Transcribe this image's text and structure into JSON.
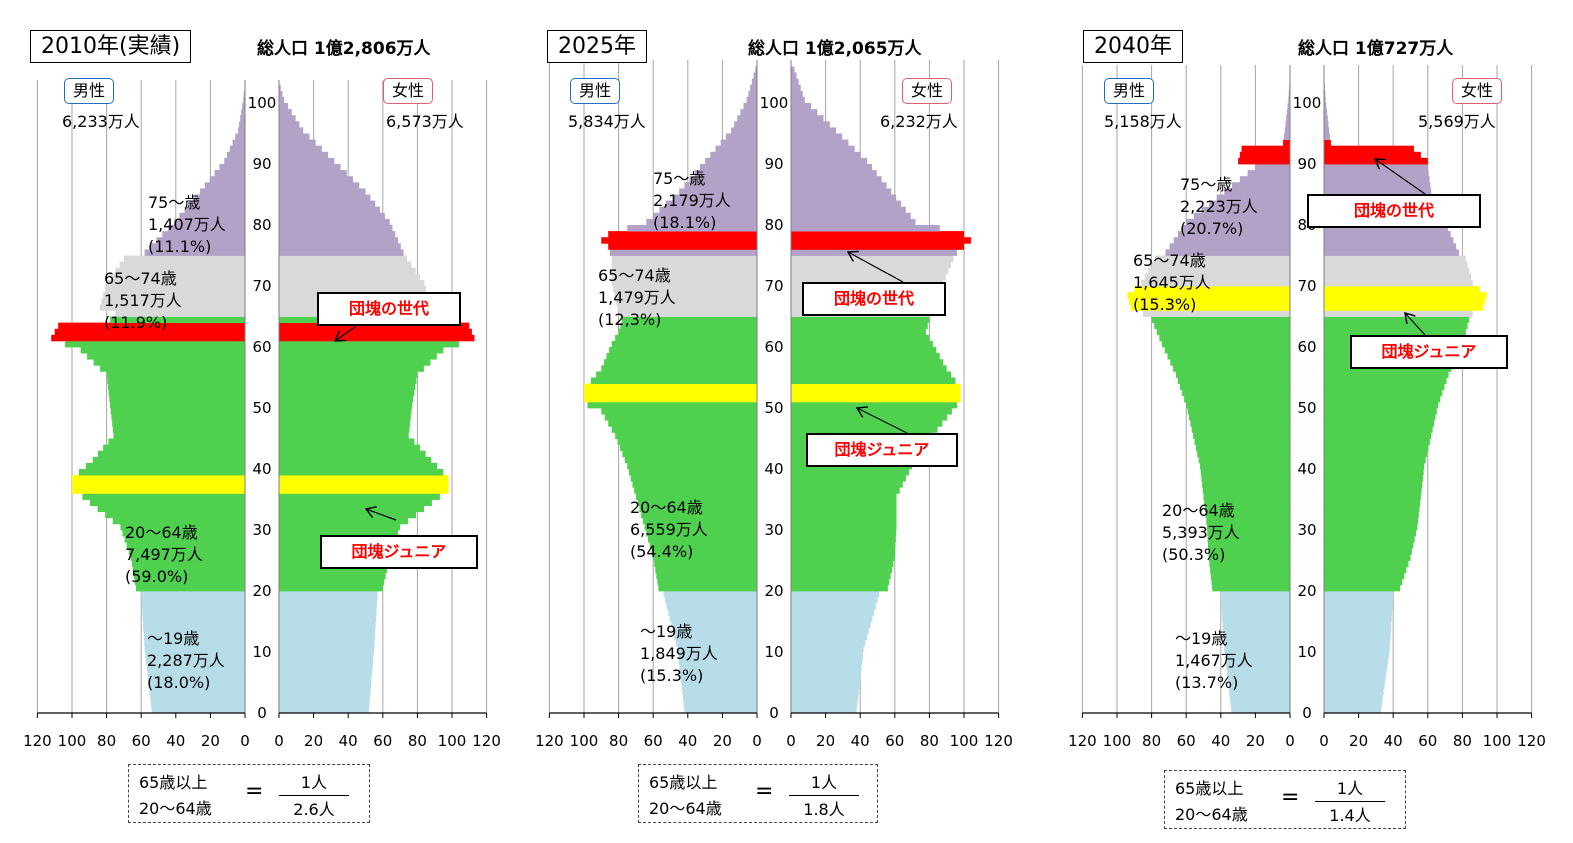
{
  "chart_data": [
    {
      "type": "bar",
      "year_label": "2010年(実績)",
      "total_label": "総人口 1億2,806万人",
      "male": {
        "label": "男性",
        "total": "6,233万人"
      },
      "female": {
        "label": "女性",
        "total": "6,573万人"
      },
      "x_ticks_left": [
        "120",
        "100",
        "80",
        "60",
        "40",
        "20",
        "0"
      ],
      "x_ticks_right": [
        "0",
        "20",
        "40",
        "60",
        "80",
        "100",
        "120"
      ],
      "y_ticks": [
        "0",
        "10",
        "20",
        "30",
        "40",
        "50",
        "60",
        "70",
        "80",
        "90",
        "100"
      ],
      "xlim": [
        0,
        120
      ],
      "ylim": [
        0,
        105
      ],
      "groups": [
        {
          "label": "75～歳\n1,407万人\n(11.1%)",
          "color": "#b3a2c7"
        },
        {
          "label": "65～74歳\n1,517万人\n(11.9%)",
          "color": "#d9d9d9"
        },
        {
          "label": "20～64歳\n7,497万人\n(59.0%)",
          "color": "#4fd04f"
        },
        {
          "label": "～19歳\n2,287万人\n(18.0%)",
          "color": "#b7dde8"
        }
      ],
      "callouts": [
        {
          "label": "団塊の世代",
          "color": "#ff0000"
        },
        {
          "label": "団塊ジュニア",
          "color": "#ffff00"
        }
      ],
      "ratio": {
        "top": "65歳以上",
        "bottom": "20～64歳",
        "eq": "=",
        "num": "1人",
        "den": "2.6人"
      },
      "anchors_male": [
        [
          0,
          54
        ],
        [
          10,
          58
        ],
        [
          19,
          60
        ],
        [
          20,
          63
        ],
        [
          25,
          66
        ],
        [
          30,
          72
        ],
        [
          35,
          94
        ],
        [
          36,
          100
        ],
        [
          38,
          100
        ],
        [
          39,
          96
        ],
        [
          41,
          88
        ],
        [
          45,
          76
        ],
        [
          50,
          78
        ],
        [
          55,
          80
        ],
        [
          59,
          95
        ],
        [
          60,
          104
        ],
        [
          61,
          112
        ],
        [
          63,
          108
        ],
        [
          64,
          78
        ],
        [
          65,
          75
        ],
        [
          66,
          84
        ],
        [
          70,
          80
        ],
        [
          74,
          70
        ],
        [
          75,
          58
        ],
        [
          80,
          41
        ],
        [
          85,
          26
        ],
        [
          90,
          12
        ],
        [
          95,
          4
        ],
        [
          100,
          1
        ],
        [
          103,
          0
        ]
      ],
      "anchors_female": [
        [
          0,
          52
        ],
        [
          10,
          55
        ],
        [
          19,
          57
        ],
        [
          20,
          60
        ],
        [
          25,
          64
        ],
        [
          30,
          70
        ],
        [
          35,
          93
        ],
        [
          36,
          98
        ],
        [
          38,
          98
        ],
        [
          39,
          95
        ],
        [
          41,
          88
        ],
        [
          45,
          75
        ],
        [
          50,
          77
        ],
        [
          55,
          80
        ],
        [
          59,
          95
        ],
        [
          60,
          104
        ],
        [
          61,
          113
        ],
        [
          63,
          110
        ],
        [
          64,
          80
        ],
        [
          65,
          78
        ],
        [
          66,
          88
        ],
        [
          70,
          84
        ],
        [
          74,
          74
        ],
        [
          75,
          72
        ],
        [
          80,
          64
        ],
        [
          85,
          50
        ],
        [
          90,
          32
        ],
        [
          95,
          14
        ],
        [
          100,
          3
        ],
        [
          103,
          0
        ]
      ],
      "bands": [
        [
          75,
          105,
          "#b3a2c7"
        ],
        [
          65,
          74,
          "#d9d9d9"
        ],
        [
          20,
          64,
          "#4fd04f"
        ],
        [
          0,
          19,
          "#b7dde8"
        ]
      ],
      "highlights": [
        [
          61,
          63,
          "#ff0000"
        ],
        [
          36,
          38,
          "#ffff00"
        ]
      ]
    },
    {
      "type": "bar",
      "year_label": "2025年",
      "total_label": "総人口 1億2,065万人",
      "male": {
        "label": "男性",
        "total": "5,834万人"
      },
      "female": {
        "label": "女性",
        "total": "6,232万人"
      },
      "x_ticks_left": [
        "120",
        "100",
        "80",
        "60",
        "40",
        "20",
        "0"
      ],
      "x_ticks_right": [
        "0",
        "20",
        "40",
        "60",
        "80",
        "100",
        "120"
      ],
      "y_ticks": [
        "0",
        "10",
        "20",
        "30",
        "40",
        "50",
        "60",
        "70",
        "80",
        "90",
        "100"
      ],
      "xlim": [
        0,
        120
      ],
      "ylim": [
        0,
        105
      ],
      "groups": [
        {
          "label": "75～歳\n2,179万人\n(18.1%)",
          "color": "#b3a2c7"
        },
        {
          "label": "65～74歳\n1,479万人\n(12,3%)",
          "color": "#d9d9d9"
        },
        {
          "label": "20～64歳\n6,559万人\n(54.4%)",
          "color": "#4fd04f"
        },
        {
          "label": "～19歳\n1,849万人\n(15.3%)",
          "color": "#b7dde8"
        }
      ],
      "callouts": [
        {
          "label": "団塊の世代",
          "color": "#ff0000"
        },
        {
          "label": "団塊ジュニア",
          "color": "#ffff00"
        }
      ],
      "ratio": {
        "top": "65歳以上",
        "bottom": "20～64歳",
        "eq": "=",
        "num": "1人",
        "den": "1.8人"
      },
      "anchors_male": [
        [
          0,
          42
        ],
        [
          10,
          46
        ],
        [
          19,
          54
        ],
        [
          20,
          57
        ],
        [
          25,
          60
        ],
        [
          30,
          65
        ],
        [
          35,
          70
        ],
        [
          40,
          75
        ],
        [
          45,
          82
        ],
        [
          49,
          90
        ],
        [
          50,
          98
        ],
        [
          51,
          100
        ],
        [
          53,
          100
        ],
        [
          54,
          96
        ],
        [
          56,
          90
        ],
        [
          60,
          84
        ],
        [
          62,
          80
        ],
        [
          64,
          78
        ],
        [
          65,
          80
        ],
        [
          70,
          84
        ],
        [
          74,
          84
        ],
        [
          75,
          85
        ],
        [
          76,
          86
        ],
        [
          77,
          90
        ],
        [
          78,
          86
        ],
        [
          80,
          64
        ],
        [
          85,
          45
        ],
        [
          90,
          30
        ],
        [
          95,
          15
        ],
        [
          100,
          6
        ],
        [
          105,
          1
        ]
      ],
      "anchors_female": [
        [
          0,
          38
        ],
        [
          10,
          42
        ],
        [
          19,
          51
        ],
        [
          20,
          56
        ],
        [
          25,
          60
        ],
        [
          30,
          61
        ],
        [
          35,
          61
        ],
        [
          40,
          70
        ],
        [
          45,
          82
        ],
        [
          49,
          93
        ],
        [
          50,
          96
        ],
        [
          51,
          98
        ],
        [
          53,
          98
        ],
        [
          54,
          95
        ],
        [
          56,
          90
        ],
        [
          60,
          82
        ],
        [
          62,
          78
        ],
        [
          64,
          80
        ],
        [
          65,
          82
        ],
        [
          70,
          88
        ],
        [
          74,
          94
        ],
        [
          75,
          96
        ],
        [
          76,
          100
        ],
        [
          77,
          104
        ],
        [
          78,
          100
        ],
        [
          80,
          72
        ],
        [
          85,
          58
        ],
        [
          90,
          44
        ],
        [
          95,
          26
        ],
        [
          100,
          8
        ],
        [
          105,
          2
        ]
      ],
      "bands": [
        [
          75,
          105,
          "#b3a2c7"
        ],
        [
          65,
          74,
          "#d9d9d9"
        ],
        [
          20,
          64,
          "#4fd04f"
        ],
        [
          0,
          19,
          "#b7dde8"
        ]
      ],
      "highlights": [
        [
          76,
          78,
          "#ff0000"
        ],
        [
          51,
          53,
          "#ffff00"
        ]
      ]
    },
    {
      "type": "bar",
      "year_label": "2040年",
      "total_label": "総人口 1億727万人",
      "male": {
        "label": "男性",
        "total": "5,158万人"
      },
      "female": {
        "label": "女性",
        "total": "5,569万人"
      },
      "x_ticks_left": [
        "120",
        "100",
        "80",
        "60",
        "40",
        "20",
        "0"
      ],
      "x_ticks_right": [
        "0",
        "20",
        "40",
        "60",
        "80",
        "100",
        "120"
      ],
      "y_ticks": [
        "0",
        "10",
        "20",
        "30",
        "40",
        "50",
        "60",
        "70",
        "80",
        "90",
        "100"
      ],
      "xlim": [
        0,
        120
      ],
      "ylim": [
        0,
        105
      ],
      "groups": [
        {
          "label": "75～歳\n2,223万人\n(20.7%)",
          "color": "#b3a2c7"
        },
        {
          "label": "65～74歳\n1,645万人\n(15.3%)",
          "color": "#d9d9d9"
        },
        {
          "label": "20～64歳\n5,393万人\n(50.3%)",
          "color": "#4fd04f"
        },
        {
          "label": "～19歳\n1,467万人\n(13.7%)",
          "color": "#b7dde8"
        }
      ],
      "callouts": [
        {
          "label": "団塊の世代",
          "color": "#ff0000"
        },
        {
          "label": "団塊ジュニア",
          "color": "#ffff00"
        }
      ],
      "ratio": {
        "top": "65歳以上",
        "bottom": "20～64歳",
        "eq": "=",
        "num": "1人",
        "den": "1.4人"
      },
      "anchors_male": [
        [
          0,
          34
        ],
        [
          10,
          38
        ],
        [
          19,
          40
        ],
        [
          20,
          45
        ],
        [
          25,
          47
        ],
        [
          30,
          48
        ],
        [
          35,
          50
        ],
        [
          40,
          52
        ],
        [
          45,
          56
        ],
        [
          50,
          60
        ],
        [
          55,
          66
        ],
        [
          60,
          74
        ],
        [
          64,
          80
        ],
        [
          65,
          85
        ],
        [
          66,
          92
        ],
        [
          68,
          94
        ],
        [
          69,
          90
        ],
        [
          70,
          86
        ],
        [
          74,
          78
        ],
        [
          75,
          72
        ],
        [
          80,
          60
        ],
        [
          85,
          38
        ],
        [
          89,
          20
        ],
        [
          90,
          30
        ],
        [
          92,
          28
        ],
        [
          93,
          4
        ],
        [
          95,
          3
        ],
        [
          100,
          1
        ],
        [
          104,
          0
        ]
      ],
      "anchors_female": [
        [
          0,
          33
        ],
        [
          10,
          38
        ],
        [
          19,
          40
        ],
        [
          20,
          44
        ],
        [
          25,
          50
        ],
        [
          30,
          54
        ],
        [
          35,
          56
        ],
        [
          40,
          58
        ],
        [
          45,
          62
        ],
        [
          50,
          66
        ],
        [
          55,
          72
        ],
        [
          60,
          80
        ],
        [
          64,
          84
        ],
        [
          65,
          86
        ],
        [
          66,
          92
        ],
        [
          68,
          94
        ],
        [
          69,
          90
        ],
        [
          70,
          86
        ],
        [
          74,
          82
        ],
        [
          75,
          78
        ],
        [
          80,
          70
        ],
        [
          85,
          62
        ],
        [
          89,
          60
        ],
        [
          90,
          60
        ],
        [
          92,
          52
        ],
        [
          93,
          4
        ],
        [
          95,
          3
        ],
        [
          100,
          1
        ],
        [
          104,
          0
        ]
      ],
      "bands": [
        [
          75,
          105,
          "#b3a2c7"
        ],
        [
          65,
          74,
          "#d9d9d9"
        ],
        [
          20,
          64,
          "#4fd04f"
        ],
        [
          0,
          19,
          "#b7dde8"
        ]
      ],
      "highlights": [
        [
          90,
          93,
          "#ff0000"
        ],
        [
          66,
          69,
          "#ffff00"
        ]
      ]
    }
  ]
}
